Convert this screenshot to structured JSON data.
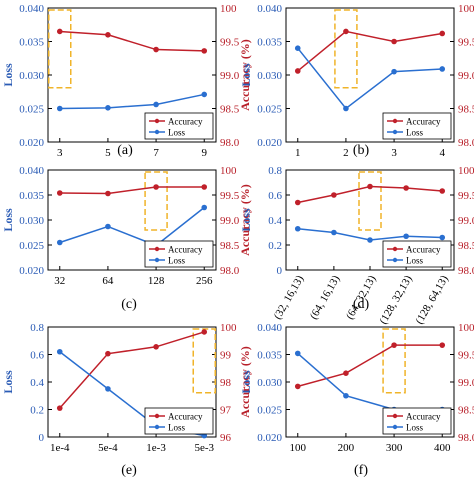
{
  "colors": {
    "accuracy": "#c0202a",
    "loss": "#2a6fd0",
    "highlight": "#f0b429",
    "axis_text_left": "#2a5bb5",
    "axis_text_right": "#b8202a"
  },
  "chart_data": [
    {
      "type": "line",
      "panel_label": "(a)",
      "categories": [
        "3",
        "5",
        "7",
        "9"
      ],
      "ylabel_left": "Loss",
      "ylabel_right": "Accuracy (%)",
      "ylim_left": [
        0.02,
        0.04
      ],
      "yticks_left": [
        "0.020",
        "0.025",
        "0.030",
        "0.035",
        "0.040"
      ],
      "ylim_right": [
        98.0,
        100.0
      ],
      "yticks_right": [
        "98.0",
        "98.5",
        "99.0",
        "99.5",
        "100"
      ],
      "series": [
        {
          "name": "Accuracy",
          "axis": "right",
          "values": [
            99.65,
            99.6,
            99.38,
            99.36
          ]
        },
        {
          "name": "Loss",
          "axis": "left",
          "values": [
            0.025,
            0.0251,
            0.0256,
            0.0271
          ]
        }
      ],
      "highlight_category": 0,
      "legend": [
        "Accuracy",
        "Loss"
      ],
      "legend_position": "bottom-right"
    },
    {
      "type": "line",
      "panel_label": "(b)",
      "categories": [
        "1",
        "2",
        "3",
        "4"
      ],
      "ylabel_left": "Loss",
      "ylabel_right": "Accuracy (%)",
      "ylim_left": [
        0.02,
        0.04
      ],
      "yticks_left": [
        "0.020",
        "0.025",
        "0.030",
        "0.035",
        "0.040"
      ],
      "ylim_right": [
        98.0,
        100.0
      ],
      "yticks_right": [
        "98.0",
        "98.5",
        "99.0",
        "99.5",
        "100"
      ],
      "series": [
        {
          "name": "Accuracy",
          "axis": "right",
          "values": [
            99.06,
            99.65,
            99.5,
            99.62
          ]
        },
        {
          "name": "Loss",
          "axis": "left",
          "values": [
            0.034,
            0.025,
            0.0305,
            0.0309
          ]
        }
      ],
      "highlight_category": 1,
      "legend": [
        "Accuracy",
        "Loss"
      ],
      "legend_position": "bottom-right"
    },
    {
      "type": "line",
      "panel_label": "(c)",
      "categories": [
        "32",
        "64",
        "128",
        "256"
      ],
      "ylabel_left": "Loss",
      "ylabel_right": "Accuracy (%)",
      "ylim_left": [
        0.02,
        0.04
      ],
      "yticks_left": [
        "0.020",
        "0.025",
        "0.030",
        "0.035",
        "0.040"
      ],
      "ylim_right": [
        98.0,
        100.0
      ],
      "yticks_right": [
        "98.0",
        "98.5",
        "99.0",
        "99.5",
        "100"
      ],
      "series": [
        {
          "name": "Accuracy",
          "axis": "right",
          "values": [
            99.54,
            99.53,
            99.66,
            99.66
          ]
        },
        {
          "name": "Loss",
          "axis": "left",
          "values": [
            0.0255,
            0.0287,
            0.0249,
            0.0325
          ]
        }
      ],
      "highlight_category": 2,
      "legend": [
        "Accuracy",
        "Loss"
      ],
      "legend_position": "bottom-right"
    },
    {
      "type": "line",
      "panel_label": "(d)",
      "categories": [
        "(32, 16,13)",
        "(64, 16,13)",
        "(64, 32,13)",
        "(128, 32,13)",
        "(128, 64,13)"
      ],
      "ylabel_left": "Loss",
      "ylabel_right": "Accuracy (%)",
      "ylim_left": [
        0.0,
        0.8
      ],
      "yticks_left": [
        "0",
        "0.2",
        "0.4",
        "0.6",
        "0.8"
      ],
      "ylim_right": [
        98.0,
        100.0
      ],
      "yticks_right": [
        "98.0",
        "98.5",
        "99.0",
        "99.5",
        "100"
      ],
      "series": [
        {
          "name": "Accuracy",
          "axis": "right",
          "values": [
            99.35,
            99.5,
            99.67,
            99.64,
            99.58
          ]
        },
        {
          "name": "Loss",
          "axis": "left",
          "values": [
            0.33,
            0.3,
            0.24,
            0.27,
            0.26
          ]
        }
      ],
      "highlight_category": 2,
      "legend": [
        "Accuracy",
        "Loss"
      ],
      "legend_position": "bottom-right"
    },
    {
      "type": "line",
      "panel_label": "(e)",
      "categories": [
        "1e-4",
        "5e-4",
        "1e-3",
        "5e-3"
      ],
      "ylabel_left": "Loss",
      "ylabel_right": "Accuracy (%)",
      "ylim_left": [
        0.0,
        0.8
      ],
      "yticks_left": [
        "0",
        "0.2",
        "0.4",
        "0.6",
        "0.8"
      ],
      "ylim_right": [
        96.0,
        100.0
      ],
      "yticks_right": [
        "96",
        "97",
        "98",
        "99",
        "100"
      ],
      "series": [
        {
          "name": "Accuracy",
          "axis": "right",
          "values": [
            97.05,
            99.03,
            99.28,
            99.82
          ]
        },
        {
          "name": "Loss",
          "axis": "left",
          "values": [
            0.62,
            0.35,
            0.08,
            0.01
          ]
        }
      ],
      "highlight_category": 3,
      "legend": [
        "Accuracy",
        "Loss"
      ],
      "legend_position": "bottom-right"
    },
    {
      "type": "line",
      "panel_label": "(f)",
      "categories": [
        "100",
        "200",
        "300",
        "400"
      ],
      "ylabel_left": "Loss",
      "ylabel_right": "Accuracy (%)",
      "ylim_left": [
        0.02,
        0.04
      ],
      "yticks_left": [
        "0.020",
        "0.025",
        "0.030",
        "0.035",
        "0.040"
      ],
      "ylim_right": [
        98.0,
        100.0
      ],
      "yticks_right": [
        "98.0",
        "98.5",
        "99.0",
        "99.5",
        "100"
      ],
      "series": [
        {
          "name": "Accuracy",
          "axis": "right",
          "values": [
            98.92,
            99.16,
            99.67,
            99.67
          ]
        },
        {
          "name": "Loss",
          "axis": "left",
          "values": [
            0.0352,
            0.0275,
            0.025,
            0.025
          ]
        }
      ],
      "highlight_category": 2,
      "legend": [
        "Accuracy",
        "Loss"
      ],
      "legend_position": "bottom-right"
    }
  ]
}
